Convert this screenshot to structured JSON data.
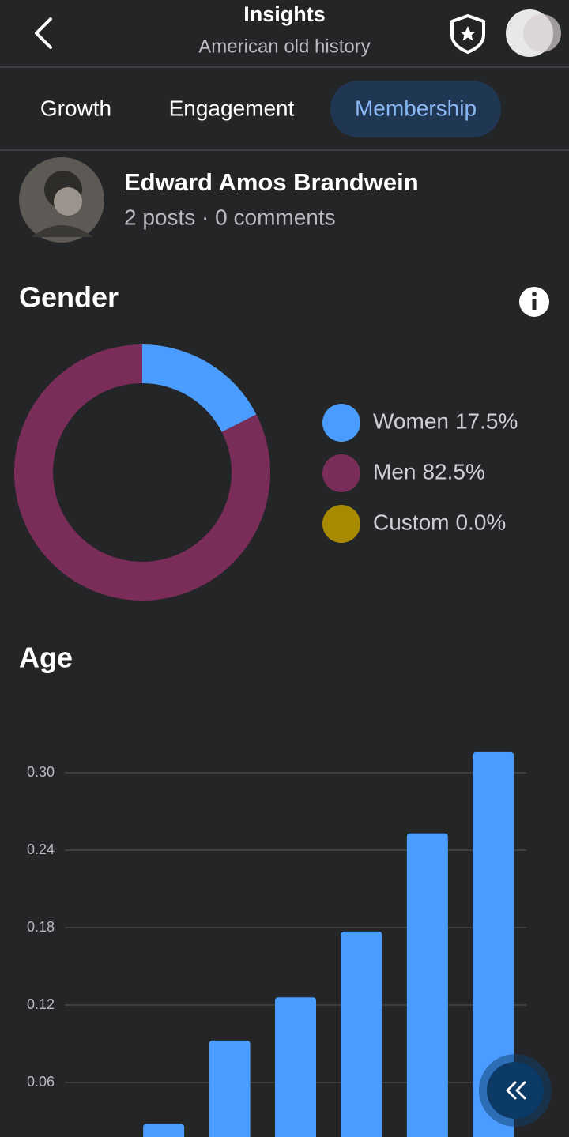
{
  "header": {
    "title": "Insights",
    "subtitle": "American old history"
  },
  "tabs": [
    "Growth",
    "Engagement",
    "Membership"
  ],
  "profile": {
    "name": "Edward Amos Brandwein",
    "stats": "2 posts · 0 comments"
  },
  "chart_data": [
    {
      "type": "donut",
      "title": "Gender",
      "categories": [
        "Women",
        "Men",
        "Custom"
      ],
      "values": [
        17.5,
        82.5,
        0.0
      ],
      "value_labels": [
        "17.5%",
        "82.5%",
        "0.0%"
      ],
      "colors": [
        "#4a9dff",
        "#7b2d5a",
        "#a88a00"
      ]
    },
    {
      "type": "bar",
      "title": "Age",
      "categories": [
        null,
        null,
        null,
        null,
        null,
        null,
        null
      ],
      "values": [
        0,
        0.028,
        0.0925,
        0.126,
        0.177,
        0.253,
        0.316
      ],
      "color": "#4a9dff",
      "ylim": [
        0,
        0.36
      ],
      "yticks": [
        0.06,
        0.12,
        0.18,
        0.24,
        {
          "value": 0.3,
          "label": "0.30"
        }
      ],
      "grid": true
    }
  ]
}
